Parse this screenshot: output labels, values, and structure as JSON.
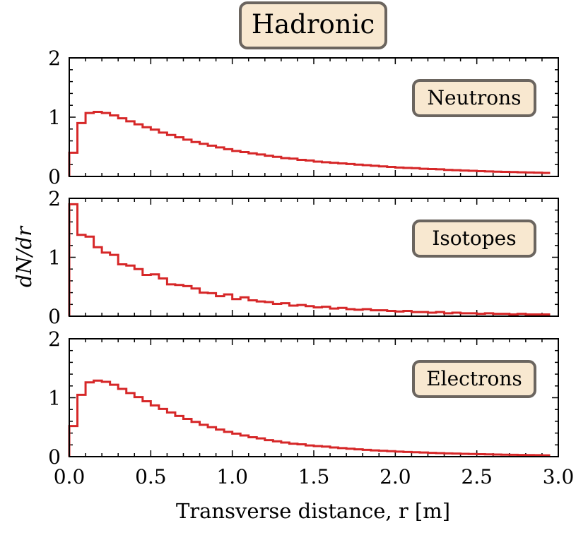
{
  "chart_data": {
    "type": "bar",
    "title": "Hadronic",
    "title_color": "#d62728",
    "line_color": "#d62728",
    "label_box_fill": "#f8e8d0",
    "label_box_stroke": "#6b655f",
    "xlabel": "Transverse distance, r [m]",
    "ylabel": "dN/dr",
    "xlim": [
      0.0,
      3.0
    ],
    "ylim": [
      0,
      2
    ],
    "x_ticks": [
      "0.0",
      "0.5",
      "1.0",
      "1.5",
      "2.0",
      "2.5",
      "3.0"
    ],
    "y_ticks": [
      "0",
      "1",
      "2"
    ],
    "bin_width": 0.05,
    "panels": [
      {
        "label": "Neutrons",
        "values": [
          0.4,
          0.9,
          1.07,
          1.09,
          1.07,
          1.03,
          0.98,
          0.93,
          0.88,
          0.83,
          0.79,
          0.74,
          0.7,
          0.66,
          0.62,
          0.58,
          0.55,
          0.52,
          0.49,
          0.46,
          0.43,
          0.41,
          0.39,
          0.37,
          0.35,
          0.33,
          0.31,
          0.3,
          0.28,
          0.27,
          0.25,
          0.24,
          0.23,
          0.22,
          0.21,
          0.2,
          0.19,
          0.18,
          0.17,
          0.16,
          0.15,
          0.145,
          0.14,
          0.13,
          0.125,
          0.12,
          0.11,
          0.105,
          0.1,
          0.095,
          0.09,
          0.085,
          0.08,
          0.077,
          0.074,
          0.07,
          0.067,
          0.064,
          0.06
        ]
      },
      {
        "label": "Isotopes",
        "values": [
          1.9,
          1.38,
          1.35,
          1.17,
          1.08,
          1.04,
          0.88,
          0.86,
          0.8,
          0.7,
          0.71,
          0.64,
          0.54,
          0.53,
          0.51,
          0.47,
          0.4,
          0.39,
          0.34,
          0.37,
          0.29,
          0.32,
          0.27,
          0.25,
          0.24,
          0.21,
          0.22,
          0.18,
          0.19,
          0.17,
          0.15,
          0.16,
          0.13,
          0.14,
          0.12,
          0.11,
          0.12,
          0.1,
          0.1,
          0.09,
          0.08,
          0.09,
          0.07,
          0.07,
          0.06,
          0.07,
          0.05,
          0.06,
          0.05,
          0.05,
          0.04,
          0.05,
          0.04,
          0.04,
          0.03,
          0.04,
          0.03,
          0.03,
          0.03
        ]
      },
      {
        "label": "Electrons",
        "values": [
          0.52,
          1.05,
          1.26,
          1.29,
          1.27,
          1.22,
          1.15,
          1.08,
          1.01,
          0.94,
          0.87,
          0.81,
          0.75,
          0.69,
          0.64,
          0.59,
          0.54,
          0.5,
          0.46,
          0.42,
          0.39,
          0.36,
          0.33,
          0.31,
          0.28,
          0.26,
          0.24,
          0.22,
          0.21,
          0.19,
          0.18,
          0.17,
          0.155,
          0.145,
          0.135,
          0.125,
          0.115,
          0.107,
          0.1,
          0.093,
          0.086,
          0.08,
          0.075,
          0.07,
          0.065,
          0.06,
          0.056,
          0.052,
          0.048,
          0.045,
          0.042,
          0.039,
          0.036,
          0.033,
          0.031,
          0.029,
          0.027,
          0.025,
          0.023
        ]
      }
    ]
  }
}
